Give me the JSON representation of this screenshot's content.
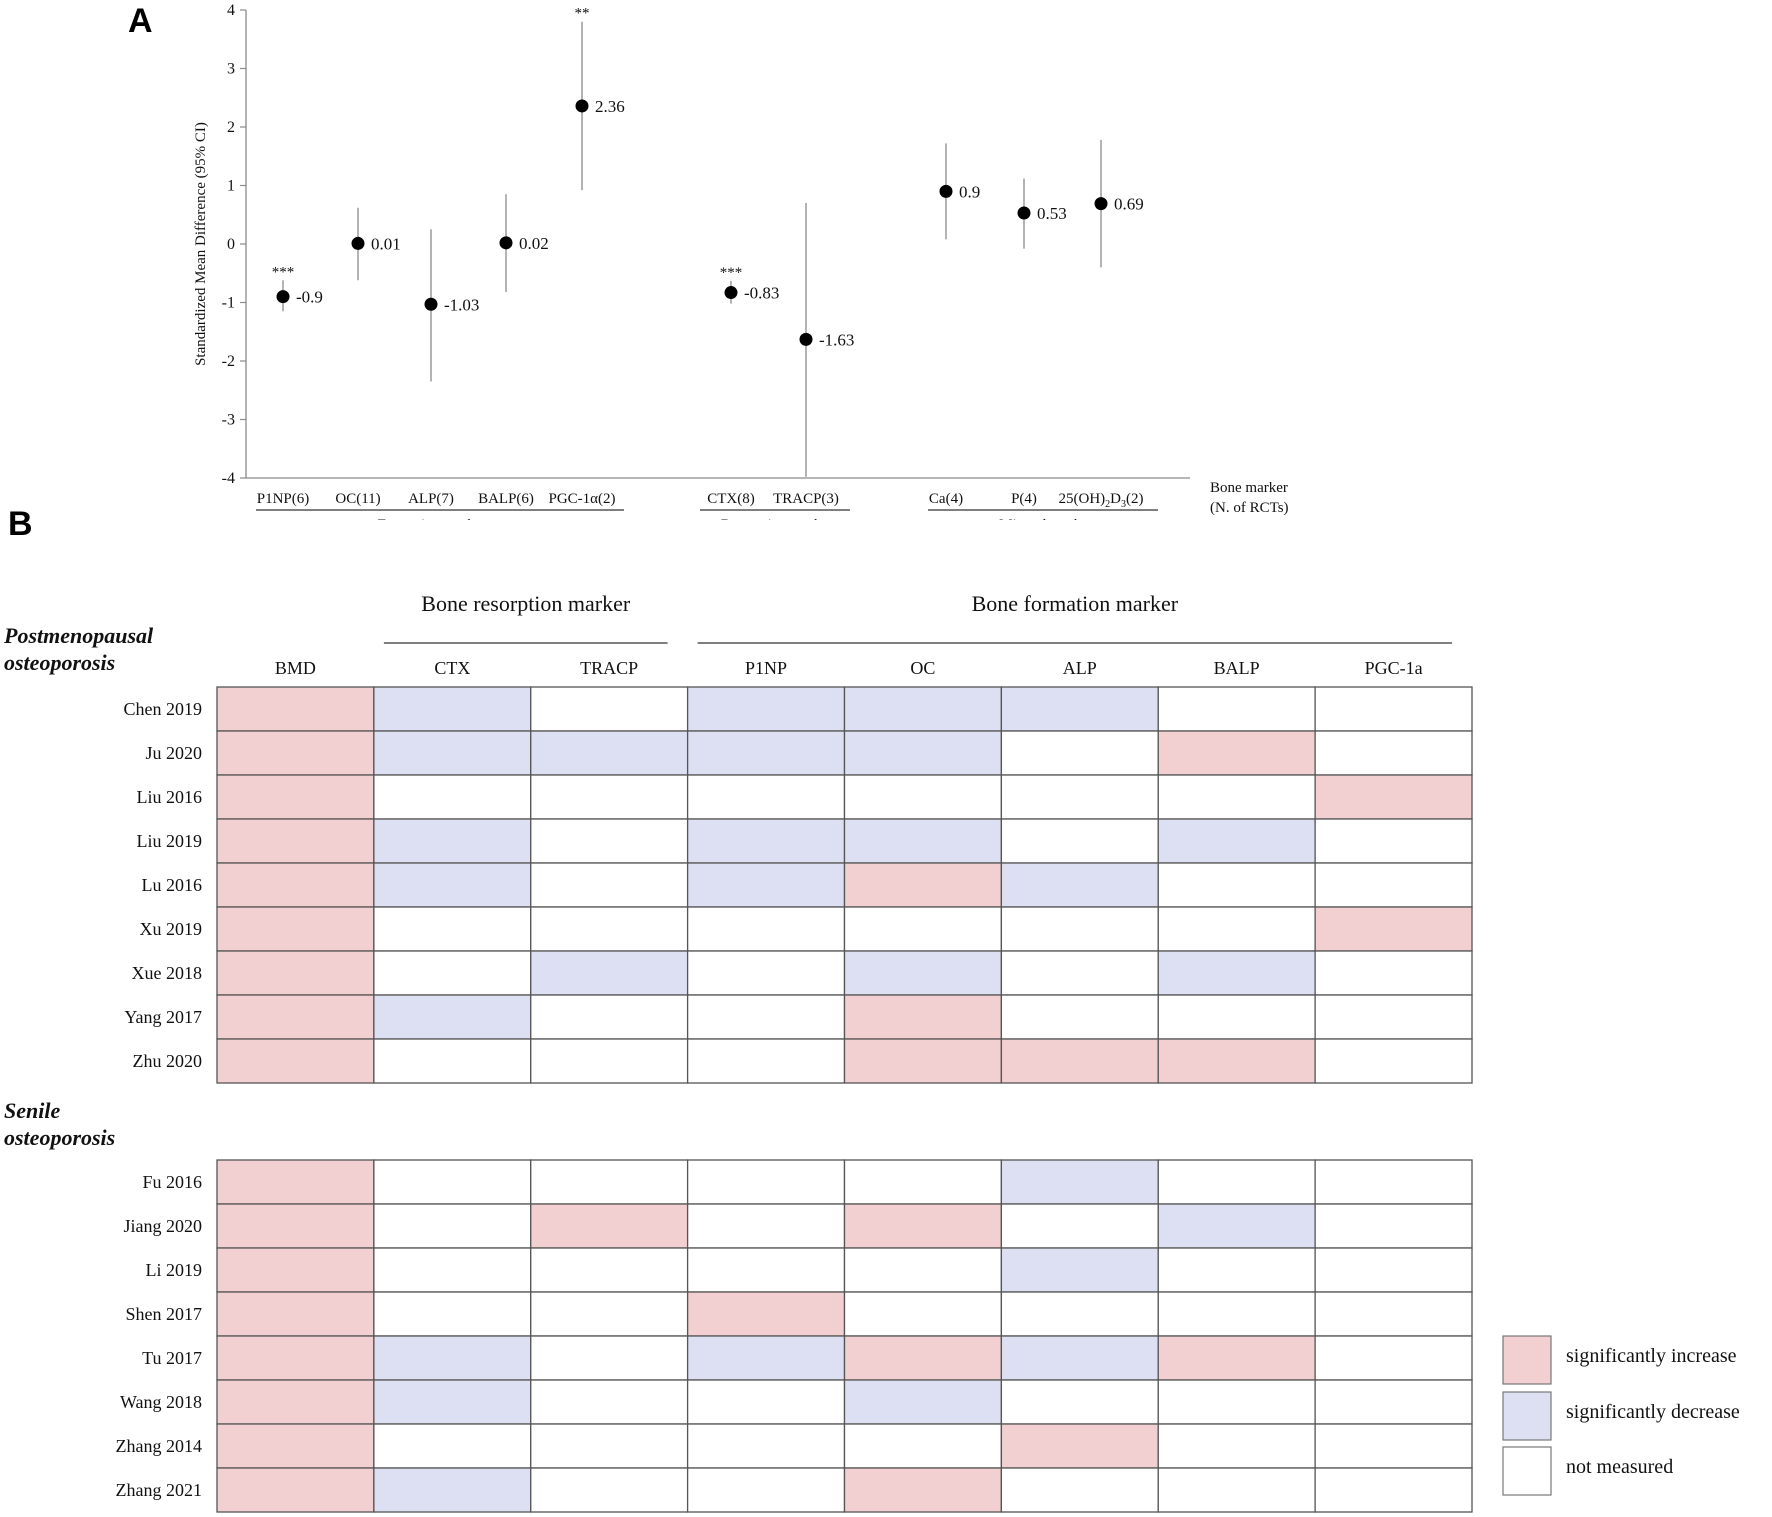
{
  "panels": {
    "a_label": "A",
    "b_label": "B"
  },
  "chart_data": [
    {
      "type": "scatter",
      "subtype": "forest-plot",
      "ylabel": "Standardized  Mean Difference (95% CI)",
      "ylim": [
        -4,
        4
      ],
      "yticks": [
        "4",
        "3",
        "2",
        "1",
        "0",
        "-1",
        "-2",
        "-3",
        "-4"
      ],
      "xlabel_lines": [
        "Bone marker",
        "(N. of RCTs)"
      ],
      "points": [
        {
          "label": "P1NP(6)",
          "value": -0.9,
          "value_label": "-0.9",
          "ci": [
            -1.15,
            -0.62
          ],
          "sig": "***",
          "group": 0
        },
        {
          "label": "OC(11)",
          "value": 0.01,
          "value_label": "0.01",
          "ci": [
            -0.62,
            0.62
          ],
          "sig": "",
          "group": 0
        },
        {
          "label": "ALP(7)",
          "value": -1.03,
          "value_label": "-1.03",
          "ci": [
            -2.35,
            0.25
          ],
          "sig": "",
          "group": 0
        },
        {
          "label": "BALP(6)",
          "value": 0.02,
          "value_label": "0.02",
          "ci": [
            -0.82,
            0.85
          ],
          "sig": "",
          "group": 0
        },
        {
          "label": "PGC-1α(2)",
          "value": 2.36,
          "value_label": "2.36",
          "ci": [
            0.92,
            3.8
          ],
          "sig": "**",
          "group": 0
        },
        {
          "label": "CTX(8)",
          "value": -0.83,
          "value_label": "-0.83",
          "ci": [
            -1.02,
            -0.63
          ],
          "sig": "***",
          "group": 1
        },
        {
          "label": "TRACP(3)",
          "value": -1.63,
          "value_label": "-1.63",
          "ci": [
            -3.98,
            0.7
          ],
          "sig": "",
          "group": 1
        },
        {
          "label": "Ca(4)",
          "value": 0.9,
          "value_label": "0.9",
          "ci": [
            0.08,
            1.72
          ],
          "sig": "",
          "group": 2
        },
        {
          "label": "P(4)",
          "value": 0.53,
          "value_label": "0.53",
          "ci": [
            -0.08,
            1.12
          ],
          "sig": "",
          "group": 2
        },
        {
          "label": "25(OH)2D3(2)",
          "value": 0.69,
          "value_label": "0.69",
          "ci": [
            -0.4,
            1.78
          ],
          "sig": "",
          "group": 2
        }
      ],
      "groups": [
        "Formation marker",
        "Resorption marker",
        "Mineral marker"
      ]
    },
    {
      "type": "heatmap",
      "title_groups": [
        {
          "label": "Bone resorption marker",
          "span": [
            "CTX",
            "TRACP"
          ]
        },
        {
          "label": "Bone formation marker",
          "span": [
            "P1NP",
            "PGC-1a"
          ]
        }
      ],
      "columns": [
        "BMD",
        "CTX",
        "TRACP",
        "P1NP",
        "OC",
        "ALP",
        "BALP",
        "PGC-1a"
      ],
      "states": {
        "up": {
          "label": "significantly increase",
          "color": "#f2cfd0"
        },
        "down": {
          "label": "significantly decrease",
          "color": "#dde0f3"
        },
        "none": {
          "label": "not measured",
          "color": "#ffffff"
        }
      },
      "sections": [
        {
          "title_lines": [
            "Postmenopausal",
            "osteoporosis"
          ],
          "rows": [
            {
              "study": "Chen 2019",
              "cells": [
                "up",
                "down",
                "none",
                "down",
                "down",
                "down",
                "none",
                "none"
              ]
            },
            {
              "study": "Ju 2020",
              "cells": [
                "up",
                "down",
                "down",
                "down",
                "down",
                "none",
                "up",
                "none"
              ]
            },
            {
              "study": "Liu 2016",
              "cells": [
                "up",
                "none",
                "none",
                "none",
                "none",
                "none",
                "none",
                "up"
              ]
            },
            {
              "study": "Liu 2019",
              "cells": [
                "up",
                "down",
                "none",
                "down",
                "down",
                "none",
                "down",
                "none"
              ]
            },
            {
              "study": "Lu 2016",
              "cells": [
                "up",
                "down",
                "none",
                "down",
                "up",
                "down",
                "none",
                "none"
              ]
            },
            {
              "study": "Xu 2019",
              "cells": [
                "up",
                "none",
                "none",
                "none",
                "none",
                "none",
                "none",
                "up"
              ]
            },
            {
              "study": "Xue 2018",
              "cells": [
                "up",
                "none",
                "down",
                "none",
                "down",
                "none",
                "down",
                "none"
              ]
            },
            {
              "study": "Yang 2017",
              "cells": [
                "up",
                "down",
                "none",
                "none",
                "up",
                "none",
                "none",
                "none"
              ]
            },
            {
              "study": "Zhu 2020",
              "cells": [
                "up",
                "none",
                "none",
                "none",
                "up",
                "up",
                "up",
                "none"
              ]
            }
          ]
        },
        {
          "title_lines": [
            "Senile",
            "osteoporosis"
          ],
          "rows": [
            {
              "study": "Fu 2016",
              "cells": [
                "up",
                "none",
                "none",
                "none",
                "none",
                "down",
                "none",
                "none"
              ]
            },
            {
              "study": "Jiang 2020",
              "cells": [
                "up",
                "none",
                "up",
                "none",
                "up",
                "none",
                "down",
                "none"
              ]
            },
            {
              "study": "Li 2019",
              "cells": [
                "up",
                "none",
                "none",
                "none",
                "none",
                "down",
                "none",
                "none"
              ]
            },
            {
              "study": "Shen 2017",
              "cells": [
                "up",
                "none",
                "none",
                "up",
                "none",
                "none",
                "none",
                "none"
              ]
            },
            {
              "study": "Tu 2017",
              "cells": [
                "up",
                "down",
                "none",
                "down",
                "up",
                "down",
                "up",
                "none"
              ]
            },
            {
              "study": "Wang 2018",
              "cells": [
                "up",
                "down",
                "none",
                "none",
                "down",
                "none",
                "none",
                "none"
              ]
            },
            {
              "study": "Zhang 2014",
              "cells": [
                "up",
                "none",
                "none",
                "none",
                "none",
                "up",
                "none",
                "none"
              ]
            },
            {
              "study": "Zhang 2021",
              "cells": [
                "up",
                "down",
                "none",
                "none",
                "up",
                "none",
                "none",
                "none"
              ]
            }
          ]
        }
      ],
      "legend": [
        "up",
        "down",
        "none"
      ]
    }
  ]
}
